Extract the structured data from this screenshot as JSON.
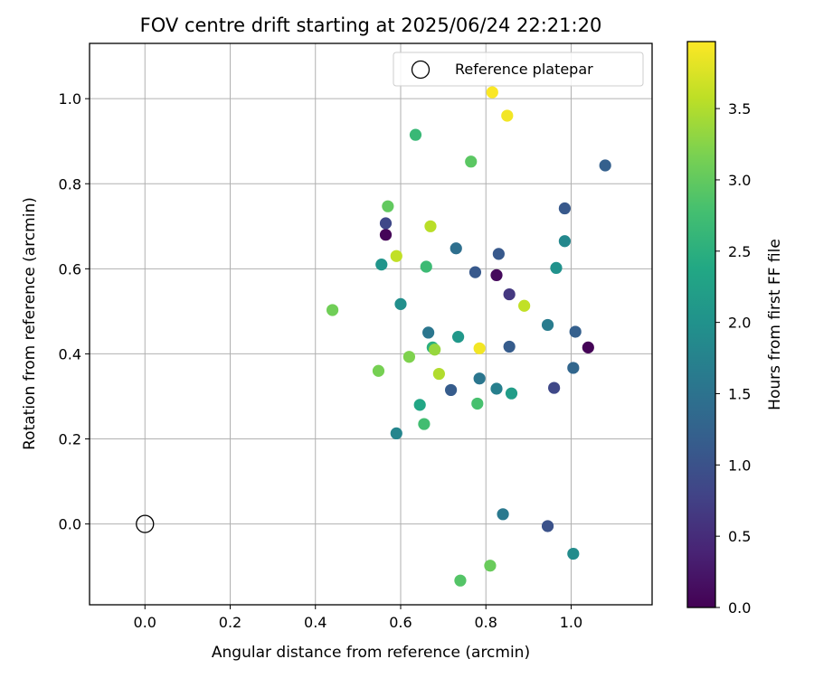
{
  "chart_data": {
    "type": "scatter",
    "title": "FOV centre drift starting at 2025/06/24 22:21:20",
    "xlabel": "Angular distance from reference (arcmin)",
    "ylabel": "Rotation from reference (arcmin)",
    "xlim": [
      -0.13,
      1.19
    ],
    "ylim": [
      -0.19,
      1.13
    ],
    "x_ticks": [
      0.0,
      0.2,
      0.4,
      0.6,
      0.8,
      1.0
    ],
    "x_tick_labels": [
      "0.0",
      "0.2",
      "0.4",
      "0.6",
      "0.8",
      "1.0"
    ],
    "y_ticks": [
      0.0,
      0.2,
      0.4,
      0.6,
      0.8,
      1.0
    ],
    "y_tick_labels": [
      "0.0",
      "0.2",
      "0.4",
      "0.6",
      "0.8",
      "1.0"
    ],
    "grid": true,
    "legend": {
      "placement": "top-right",
      "entries": [
        "Reference platepar"
      ]
    },
    "colorbar": {
      "label": "Hours from first FF file",
      "colormap": "viridis",
      "range": [
        0.0,
        3.97
      ],
      "ticks": [
        0.0,
        0.5,
        1.0,
        1.5,
        2.0,
        2.5,
        3.0,
        3.5
      ],
      "tick_labels": [
        "0.0",
        "0.5",
        "1.0",
        "1.5",
        "2.0",
        "2.5",
        "3.0",
        "3.5"
      ]
    },
    "reference_point": {
      "name": "Reference platepar",
      "x": 0.0,
      "y": 0.0
    },
    "points": [
      {
        "x": 1.04,
        "y": 0.415,
        "c": 0.02
      },
      {
        "x": 0.565,
        "y": 0.68,
        "c": 0.05
      },
      {
        "x": 0.825,
        "y": 0.585,
        "c": 0.1
      },
      {
        "x": 0.855,
        "y": 0.54,
        "c": 0.65
      },
      {
        "x": 0.565,
        "y": 0.707,
        "c": 0.85
      },
      {
        "x": 0.96,
        "y": 0.32,
        "c": 0.85
      },
      {
        "x": 0.945,
        "y": -0.005,
        "c": 1.0
      },
      {
        "x": 0.775,
        "y": 0.592,
        "c": 1.1
      },
      {
        "x": 0.83,
        "y": 0.635,
        "c": 1.1
      },
      {
        "x": 0.985,
        "y": 0.742,
        "c": 1.1
      },
      {
        "x": 0.718,
        "y": 0.315,
        "c": 1.15
      },
      {
        "x": 0.855,
        "y": 0.417,
        "c": 1.15
      },
      {
        "x": 1.08,
        "y": 0.843,
        "c": 1.2
      },
      {
        "x": 1.01,
        "y": 0.452,
        "c": 1.2
      },
      {
        "x": 1.005,
        "y": 0.367,
        "c": 1.3
      },
      {
        "x": 0.73,
        "y": 0.648,
        "c": 1.45
      },
      {
        "x": 0.665,
        "y": 0.45,
        "c": 1.55
      },
      {
        "x": 0.785,
        "y": 0.342,
        "c": 1.55
      },
      {
        "x": 0.84,
        "y": 0.023,
        "c": 1.6
      },
      {
        "x": 0.945,
        "y": 0.468,
        "c": 1.65
      },
      {
        "x": 0.825,
        "y": 0.318,
        "c": 1.7
      },
      {
        "x": 0.59,
        "y": 0.213,
        "c": 1.8
      },
      {
        "x": 0.985,
        "y": 0.665,
        "c": 1.85
      },
      {
        "x": 1.005,
        "y": -0.07,
        "c": 1.9
      },
      {
        "x": 0.6,
        "y": 0.517,
        "c": 1.95
      },
      {
        "x": 0.965,
        "y": 0.602,
        "c": 2.0
      },
      {
        "x": 0.555,
        "y": 0.61,
        "c": 2.05
      },
      {
        "x": 0.735,
        "y": 0.44,
        "c": 2.1
      },
      {
        "x": 0.86,
        "y": 0.307,
        "c": 2.2
      },
      {
        "x": 0.645,
        "y": 0.28,
        "c": 2.35
      },
      {
        "x": 0.675,
        "y": 0.415,
        "c": 2.5
      },
      {
        "x": 0.635,
        "y": 0.915,
        "c": 2.65
      },
      {
        "x": 0.66,
        "y": 0.605,
        "c": 2.7
      },
      {
        "x": 0.655,
        "y": 0.235,
        "c": 2.75
      },
      {
        "x": 0.78,
        "y": 0.283,
        "c": 2.8
      },
      {
        "x": 0.74,
        "y": -0.133,
        "c": 2.9
      },
      {
        "x": 0.765,
        "y": 0.852,
        "c": 2.95
      },
      {
        "x": 0.57,
        "y": 0.747,
        "c": 3.0
      },
      {
        "x": 0.81,
        "y": -0.098,
        "c": 3.05
      },
      {
        "x": 0.44,
        "y": 0.503,
        "c": 3.1
      },
      {
        "x": 0.548,
        "y": 0.36,
        "c": 3.15
      },
      {
        "x": 0.62,
        "y": 0.393,
        "c": 3.2
      },
      {
        "x": 0.68,
        "y": 0.41,
        "c": 3.35
      },
      {
        "x": 0.69,
        "y": 0.353,
        "c": 3.5
      },
      {
        "x": 0.67,
        "y": 0.7,
        "c": 3.55
      },
      {
        "x": 0.59,
        "y": 0.63,
        "c": 3.6
      },
      {
        "x": 0.89,
        "y": 0.513,
        "c": 3.6
      },
      {
        "x": 0.85,
        "y": 0.96,
        "c": 3.9
      },
      {
        "x": 0.785,
        "y": 0.413,
        "c": 3.9
      },
      {
        "x": 0.815,
        "y": 1.015,
        "c": 3.95
      }
    ]
  }
}
